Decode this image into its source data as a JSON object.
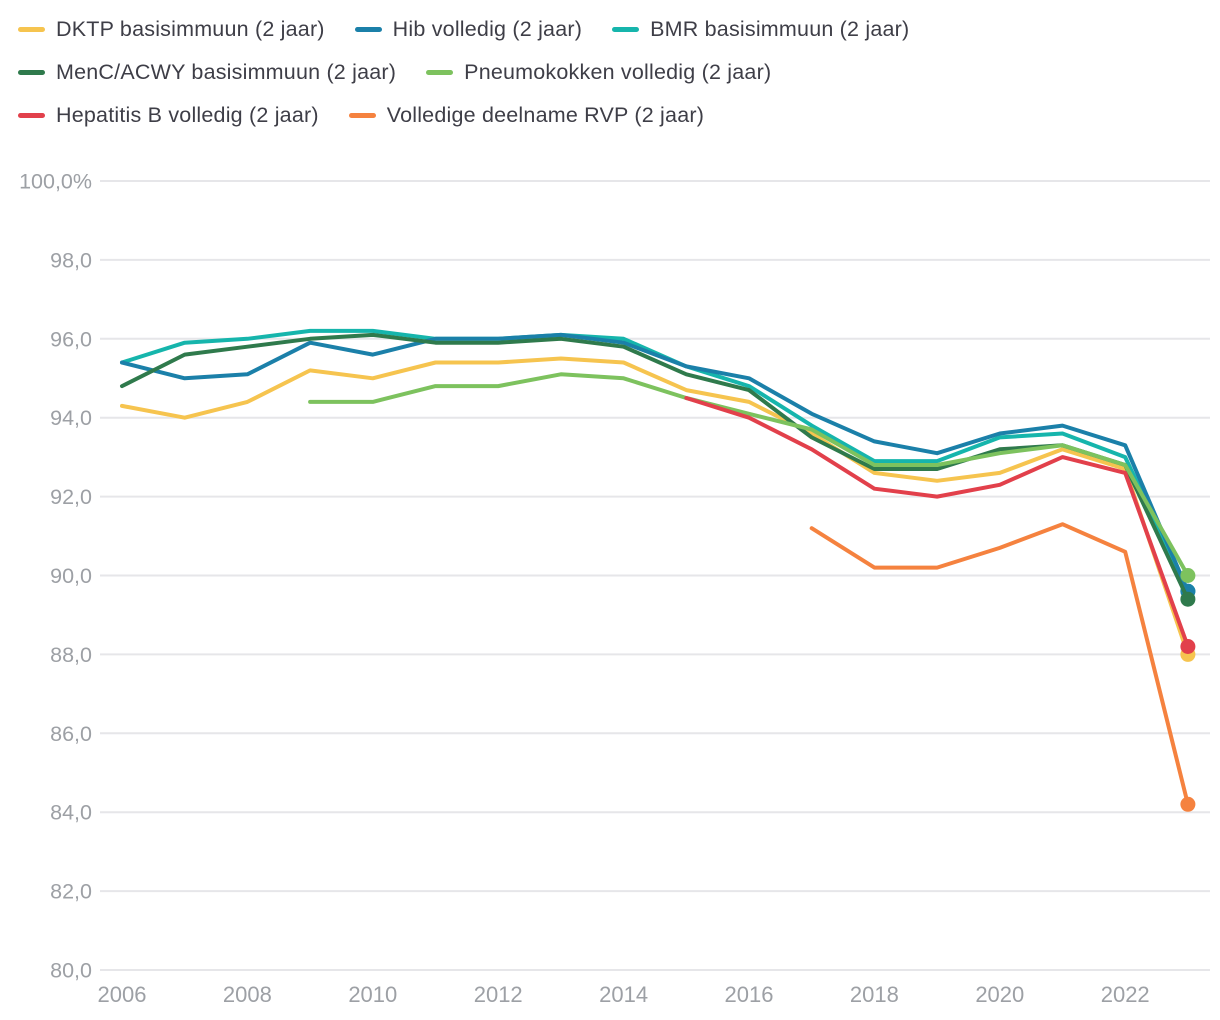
{
  "chart_data": {
    "type": "line",
    "x": [
      2006,
      2007,
      2008,
      2009,
      2010,
      2011,
      2012,
      2013,
      2014,
      2015,
      2016,
      2017,
      2018,
      2019,
      2020,
      2021,
      2022,
      2023
    ],
    "series": [
      {
        "name": "DKTP basisimmuun (2 jaar)",
        "color": "#f6c44f",
        "values": [
          94.3,
          94.0,
          94.4,
          95.2,
          95.0,
          95.4,
          95.4,
          95.5,
          95.4,
          94.7,
          94.4,
          93.6,
          92.6,
          92.4,
          92.6,
          93.2,
          92.7,
          88.0
        ]
      },
      {
        "name": "Hib volledig (2 jaar)",
        "color": "#1b80a9",
        "values": [
          95.4,
          95.0,
          95.1,
          95.9,
          95.6,
          96.0,
          96.0,
          96.1,
          95.9,
          95.3,
          95.0,
          94.1,
          93.4,
          93.1,
          93.6,
          93.8,
          93.3,
          89.6
        ]
      },
      {
        "name": "BMR basisimmuun (2 jaar)",
        "color": "#16b5ac",
        "values": [
          95.4,
          95.9,
          96.0,
          96.2,
          96.2,
          96.0,
          96.0,
          96.1,
          96.0,
          95.3,
          94.8,
          93.8,
          92.9,
          92.9,
          93.5,
          93.6,
          93.0,
          89.6
        ]
      },
      {
        "name": "MenC/ACWY basisimmuun (2 jaar)",
        "color": "#2f7a4c",
        "values": [
          94.8,
          95.6,
          95.8,
          96.0,
          96.1,
          95.9,
          95.9,
          96.0,
          95.8,
          95.1,
          94.7,
          93.5,
          92.7,
          92.7,
          93.2,
          93.3,
          92.8,
          89.4
        ]
      },
      {
        "name": "Pneumokokken volledig (2 jaar)",
        "color": "#7dc25e",
        "values": [
          null,
          null,
          null,
          94.4,
          94.4,
          94.8,
          94.8,
          95.1,
          95.0,
          94.5,
          94.1,
          93.7,
          92.8,
          92.8,
          93.1,
          93.3,
          92.8,
          90.0
        ]
      },
      {
        "name": "Hepatitis B volledig (2 jaar)",
        "color": "#e2404b",
        "values": [
          null,
          null,
          null,
          null,
          null,
          null,
          null,
          null,
          null,
          94.5,
          94.0,
          93.2,
          92.2,
          92.0,
          92.3,
          93.0,
          92.6,
          88.2
        ]
      },
      {
        "name": "Volledige deelname RVP (2 jaar)",
        "color": "#f5823f",
        "values": [
          null,
          null,
          null,
          null,
          null,
          null,
          null,
          null,
          null,
          null,
          null,
          91.2,
          90.2,
          90.2,
          90.7,
          91.3,
          90.6,
          84.2
        ]
      }
    ],
    "y_ticks": {
      "values": [
        100,
        98,
        96,
        94,
        92,
        90,
        88,
        86,
        84,
        82,
        80
      ],
      "labels": [
        "100,0%",
        "98,0",
        "96,0",
        "94,0",
        "92,0",
        "90,0",
        "88,0",
        "86,0",
        "84,0",
        "82,0",
        "80,0"
      ]
    },
    "x_ticks": {
      "values": [
        2006,
        2008,
        2010,
        2012,
        2014,
        2016,
        2018,
        2020,
        2022
      ],
      "labels": [
        "2006",
        "2008",
        "2010",
        "2012",
        "2014",
        "2016",
        "2018",
        "2020",
        "2022"
      ]
    },
    "ylim": [
      80,
      100
    ],
    "xlim": [
      2006,
      2023
    ],
    "grid": true,
    "legend_position": "top-left",
    "legend_rows": [
      [
        0,
        1,
        2
      ],
      [
        3,
        4
      ],
      [
        5,
        6
      ]
    ],
    "end_dots": true,
    "draw_order": [
      0,
      2,
      1,
      3,
      4,
      5,
      6
    ]
  }
}
